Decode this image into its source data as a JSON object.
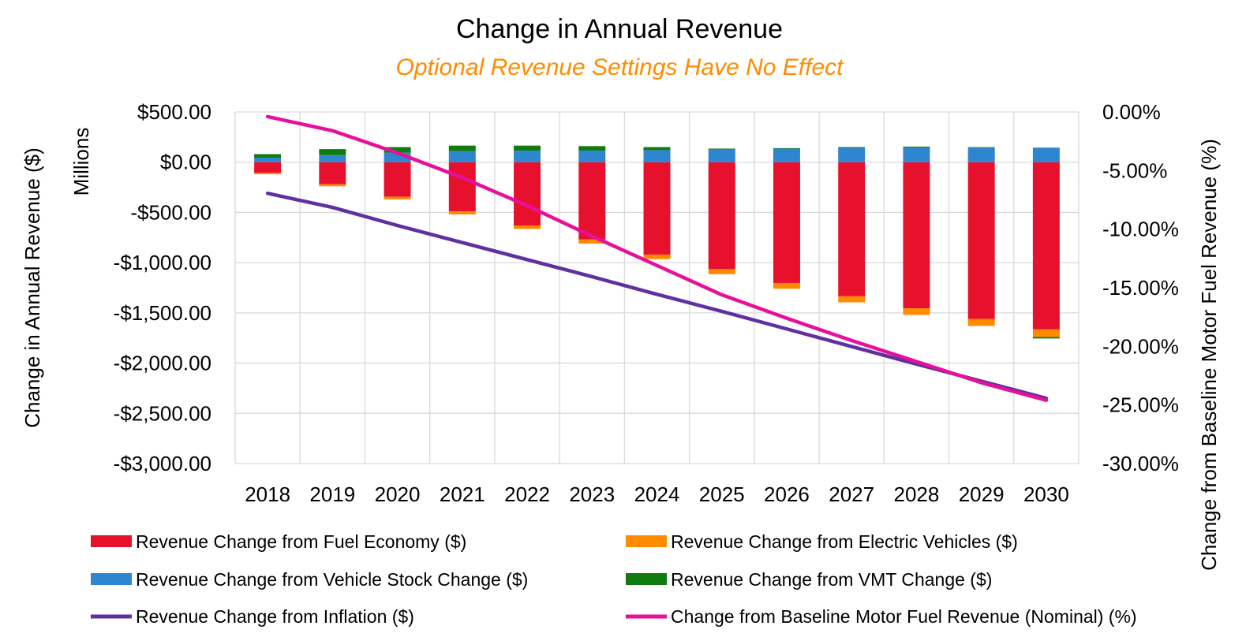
{
  "chart_data": {
    "type": "bar",
    "title": "Change in Annual Revenue",
    "subtitle": "Optional Revenue Settings Have No Effect",
    "ylabel_left": "Change in Annual Revenue ($)",
    "ylabel_left_units": "Millions",
    "ylabel_right": "Change from Baseline Motor Fuel Revenue (%)",
    "categories": [
      "2018",
      "2019",
      "2020",
      "2021",
      "2022",
      "2023",
      "2024",
      "2025",
      "2026",
      "2027",
      "2028",
      "2029",
      "2030"
    ],
    "ylim_left": [
      -3000,
      500
    ],
    "yticks_left": [
      500,
      0,
      -500,
      -1000,
      -1500,
      -2000,
      -2500,
      -3000
    ],
    "ytick_labels_left": [
      "$500.00",
      "$0.00",
      "-$500.00",
      "-$1,000.00",
      "-$1,500.00",
      "-$2,000.00",
      "-$2,500.00",
      "-$3,000.00"
    ],
    "ylim_right": [
      -30,
      0
    ],
    "yticks_right": [
      0,
      -5,
      -10,
      -15,
      -20,
      -25,
      -30
    ],
    "ytick_labels_right": [
      "0.00%",
      "-5.00%",
      "-10.00%",
      "-15.00%",
      "-20.00%",
      "-25.00%",
      "-30.00%"
    ],
    "stacked_series": [
      {
        "name": "Revenue Change from Fuel Economy ($)",
        "color": "#e8112d",
        "values": [
          -105,
          -220,
          -345,
          -490,
          -630,
          -770,
          -920,
          -1065,
          -1205,
          -1335,
          -1455,
          -1560,
          -1665
        ]
      },
      {
        "name": "Revenue Change from Electric Vehicles ($)",
        "color": "#ff8c00",
        "values": [
          -15,
          -20,
          -25,
          -30,
          -35,
          -40,
          -45,
          -50,
          -55,
          -60,
          -65,
          -70,
          -75
        ]
      },
      {
        "name": "Revenue Change from Vehicle Stock Change ($)",
        "color": "#2e86d0",
        "values": [
          45,
          70,
          95,
          110,
          115,
          115,
          120,
          125,
          135,
          140,
          145,
          145,
          145
        ]
      },
      {
        "name": "Revenue Change from VMT Change ($)",
        "color": "#107c10",
        "values": [
          35,
          60,
          55,
          55,
          50,
          45,
          30,
          10,
          5,
          10,
          10,
          5,
          -15
        ]
      }
    ],
    "line_series": [
      {
        "name": "Revenue Change from Inflation ($)",
        "color": "#6030a0",
        "axis": "left",
        "values": [
          -310,
          -450,
          -630,
          -800,
          -970,
          -1140,
          -1315,
          -1485,
          -1660,
          -1835,
          -2010,
          -2180,
          -2350
        ]
      },
      {
        "name": "Change from Baseline Motor Fuel Revenue (Nominal) (%)",
        "color": "#e6109a",
        "axis": "right",
        "values": [
          -0.4,
          -1.6,
          -3.5,
          -5.6,
          -8.0,
          -10.6,
          -13.1,
          -15.6,
          -17.6,
          -19.5,
          -21.3,
          -23.1,
          -24.6
        ]
      }
    ],
    "legend": [
      {
        "label": "Revenue Change from Fuel Economy ($)",
        "color": "#e8112d",
        "kind": "bar"
      },
      {
        "label": "Revenue Change from Electric Vehicles ($)",
        "color": "#ff8c00",
        "kind": "bar"
      },
      {
        "label": "Revenue Change from Vehicle Stock Change ($)",
        "color": "#2e86d0",
        "kind": "bar"
      },
      {
        "label": "Revenue Change from VMT Change ($)",
        "color": "#107c10",
        "kind": "bar"
      },
      {
        "label": "Revenue Change from Inflation ($)",
        "color": "#6030a0",
        "kind": "line"
      },
      {
        "label": "Change from Baseline Motor Fuel Revenue (Nominal) (%)",
        "color": "#e6109a",
        "kind": "line"
      }
    ],
    "legend_position": "bottom",
    "grid": true,
    "colors": {
      "title": "#000000",
      "subtitle": "#ff8c00",
      "grid": "#d9d9d9",
      "text": "#000000"
    }
  }
}
